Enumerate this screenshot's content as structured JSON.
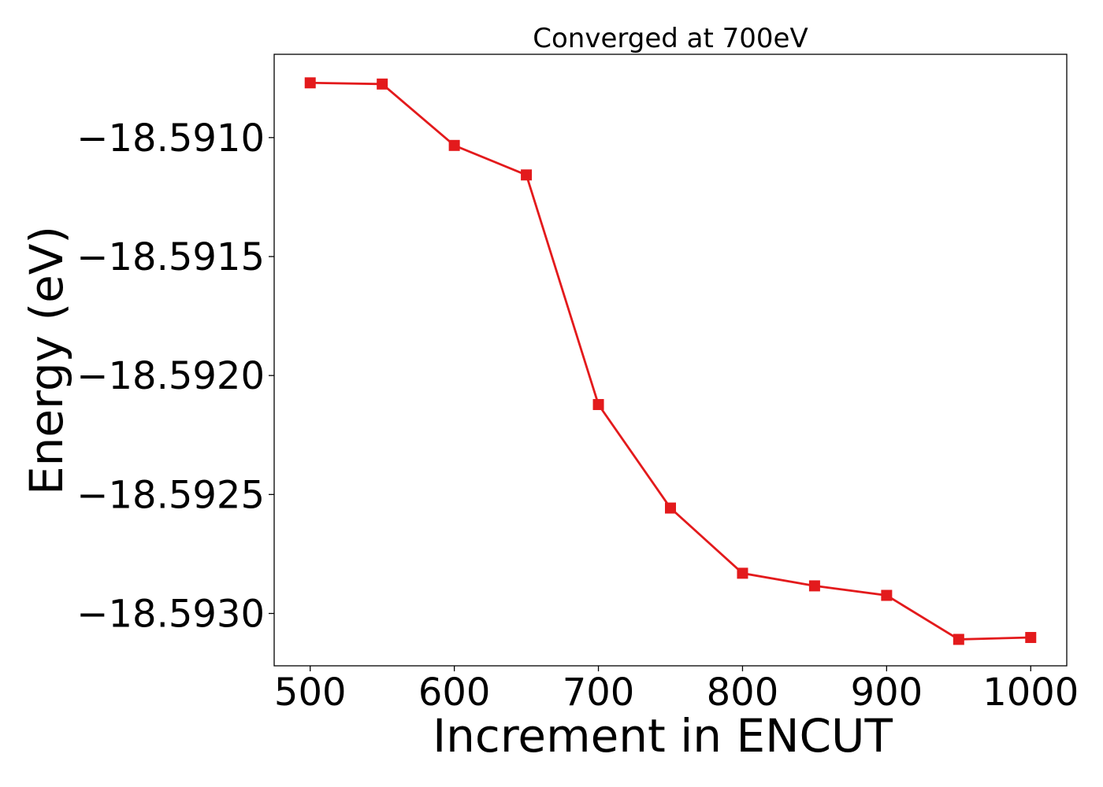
{
  "chart_data": {
    "type": "line",
    "title": "Converged at 700eV",
    "xlabel": "Increment in ENCUT",
    "ylabel": "Energy (eV)",
    "xlim": [
      475,
      1025
    ],
    "ylim": [
      -18.59322,
      -18.59065
    ],
    "xticks": [
      500,
      600,
      700,
      800,
      900,
      1000
    ],
    "yticks": [
      -18.591,
      -18.5915,
      -18.592,
      -18.5925,
      -18.593
    ],
    "ytick_labels": [
      "−18.5910",
      "−18.5915",
      "−18.5920",
      "−18.5925",
      "−18.5930"
    ],
    "grid": false,
    "series": [
      {
        "color": "#e31a1c",
        "marker": "square",
        "x": [
          500,
          550,
          600,
          650,
          700,
          750,
          800,
          850,
          900,
          950,
          1000
        ],
        "y": [
          -18.59077,
          -18.590775,
          -18.591033,
          -18.591157,
          -18.592122,
          -18.592557,
          -18.592831,
          -18.592884,
          -18.592924,
          -18.593109,
          -18.593101
        ]
      }
    ]
  }
}
